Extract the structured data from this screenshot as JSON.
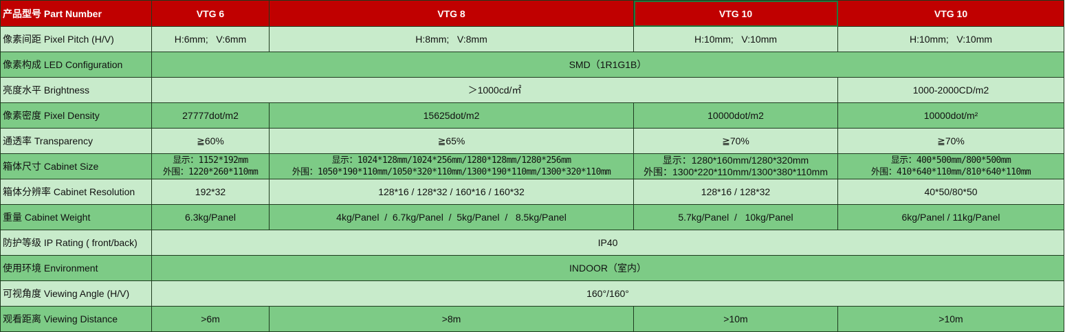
{
  "colors": {
    "header_bg": "#c00000",
    "row_light": "#c8ebcb",
    "row_dark": "#7dcb86",
    "selected_outline": "#1f7a3d"
  },
  "header": {
    "label": "产品型号 Part Number",
    "cells": [
      {
        "text": "VTG 6",
        "span": 1
      },
      {
        "text": "VTG 8",
        "span": 1
      },
      {
        "text": "VTG 10",
        "span": 1,
        "selected": true
      },
      {
        "text": "VTG 10",
        "span": 1
      }
    ]
  },
  "rows": [
    {
      "label": "像素间距 Pixel Pitch (H/V)",
      "cells": [
        {
          "text": "H:6mm;   V:6mm",
          "span": 1
        },
        {
          "text": "H:8mm;   V:8mm",
          "span": 1
        },
        {
          "text": "H:10mm;   V:10mm",
          "span": 1
        },
        {
          "text": "H:10mm;   V:10mm",
          "span": 1
        }
      ]
    },
    {
      "label": "像素构成 LED Configuration",
      "cells": [
        {
          "text": "SMD（1R1G1B）",
          "span": 4
        }
      ]
    },
    {
      "label": "亮度水平 Brightness",
      "cells": [
        {
          "text": "＞1000cd/㎡",
          "span": 3
        },
        {
          "text": "1000-2000CD/m2",
          "span": 1
        }
      ]
    },
    {
      "label": "像素密度 Pixel Density",
      "cells": [
        {
          "text": "27777dot/m2",
          "span": 1
        },
        {
          "text": "15625dot/m2",
          "span": 1
        },
        {
          "text": "10000dot/m2",
          "span": 1
        },
        {
          "text": "10000dot/m²",
          "span": 1
        }
      ]
    },
    {
      "label": "通透率 Transparency",
      "cells": [
        {
          "text": "≧60%",
          "span": 1
        },
        {
          "text": "≧65%",
          "span": 1
        },
        {
          "text": "≧70%",
          "span": 1
        },
        {
          "text": "≧70%",
          "span": 1
        }
      ]
    },
    {
      "label": "箱体尺寸 Cabinet Size",
      "cells": [
        {
          "lines": [
            "显示：1152*192mm",
            "外围：1220*260*110mm"
          ],
          "span": 1
        },
        {
          "lines": [
            "显示：1024*128mm/1024*256mm/1280*128mm/1280*256mm",
            "外围：1050*190*110mm/1050*320*110mm/1300*190*110mm/1300*320*110mm"
          ],
          "span": 1
        },
        {
          "lines": [
            "显示：1280*160mm/1280*320mm",
            "外围：1300*220*110mm/1300*380*110mm"
          ],
          "span": 1,
          "sans": true
        },
        {
          "lines": [
            "显示：400*500mm/800*500mm",
            "外围：410*640*110mm/810*640*110mm"
          ],
          "span": 1
        }
      ]
    },
    {
      "label": "箱体分辨率 Cabinet Resolution",
      "cells": [
        {
          "text": "192*32",
          "span": 1
        },
        {
          "text": "128*16 / 128*32 / 160*16 / 160*32",
          "span": 1
        },
        {
          "text": "128*16 / 128*32",
          "span": 1
        },
        {
          "text": "40*50/80*50",
          "span": 1
        }
      ]
    },
    {
      "label": "重量  Cabinet Weight",
      "cells": [
        {
          "text": "6.3kg/Panel",
          "span": 1
        },
        {
          "text": "4kg/Panel  /  6.7kg/Panel  /  5kg/Panel  /   8.5kg/Panel",
          "span": 1
        },
        {
          "text": "5.7kg/Panel  /   10kg/Panel",
          "span": 1
        },
        {
          "text": "6kg/Panel / 11kg/Panel",
          "span": 1
        }
      ]
    },
    {
      "label": "防护等级 IP Rating ( front/back)",
      "cells": [
        {
          "text": "IP40",
          "span": 4
        }
      ]
    },
    {
      "label": "使用环境 Environment",
      "cells": [
        {
          "text": "INDOOR（室内）",
          "span": 4
        }
      ]
    },
    {
      "label": "可视角度 Viewing Angle (H/V)",
      "cells": [
        {
          "text": "160°/160°",
          "span": 4
        }
      ]
    },
    {
      "label": "观看距离  Viewing Distance",
      "cells": [
        {
          "text": ">6m",
          "span": 1
        },
        {
          "text": ">8m",
          "span": 1
        },
        {
          "text": ">10m",
          "span": 1
        },
        {
          "text": ">10m",
          "span": 1
        }
      ]
    }
  ]
}
